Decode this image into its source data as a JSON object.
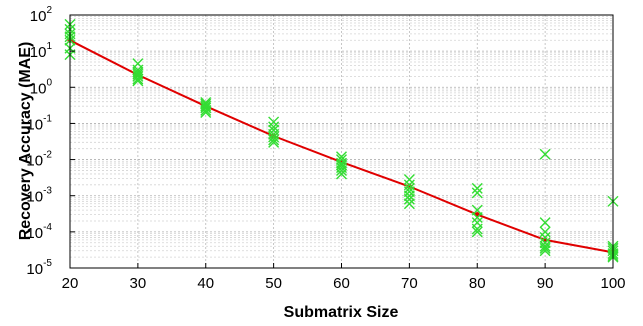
{
  "chart_data": {
    "type": "scatter",
    "xlabel": "Submatrix Size",
    "ylabel": "Recovery Accuracy (MAE)",
    "x_ticks": [
      "20",
      "30",
      "40",
      "50",
      "60",
      "70",
      "80",
      "90",
      "100"
    ],
    "y_ticks": [
      {
        "base": "10",
        "exp": "-5"
      },
      {
        "base": "10",
        "exp": "-4"
      },
      {
        "base": "10",
        "exp": "-3"
      },
      {
        "base": "10",
        "exp": "-2"
      },
      {
        "base": "10",
        "exp": "-1"
      },
      {
        "base": "10",
        "exp": "0"
      },
      {
        "base": "10",
        "exp": "1"
      },
      {
        "base": "10",
        "exp": "2"
      }
    ],
    "xlim": [
      20,
      100
    ],
    "ylim": [
      1e-05,
      100
    ],
    "y_scale": "log",
    "grid": true,
    "colors": {
      "line": "#e00000",
      "markers": "#33dd33"
    },
    "series": [
      {
        "marker": "x",
        "points": [
          [
            20,
            8
          ],
          [
            20,
            12
          ],
          [
            20,
            20
          ],
          [
            20,
            25
          ],
          [
            20,
            30
          ],
          [
            20,
            40
          ],
          [
            20,
            55
          ],
          [
            30,
            1.5
          ],
          [
            30,
            1.7
          ],
          [
            30,
            2
          ],
          [
            30,
            2.3
          ],
          [
            30,
            2.6
          ],
          [
            30,
            3
          ],
          [
            30,
            4.5
          ],
          [
            40,
            0.2
          ],
          [
            40,
            0.23
          ],
          [
            40,
            0.27
          ],
          [
            40,
            0.3
          ],
          [
            40,
            0.34
          ],
          [
            40,
            0.38
          ],
          [
            50,
            0.03
          ],
          [
            50,
            0.035
          ],
          [
            50,
            0.042
          ],
          [
            50,
            0.05
          ],
          [
            50,
            0.065
          ],
          [
            50,
            0.08
          ],
          [
            50,
            0.11
          ],
          [
            60,
            0.004
          ],
          [
            60,
            0.005
          ],
          [
            60,
            0.006
          ],
          [
            60,
            0.007
          ],
          [
            60,
            0.008
          ],
          [
            60,
            0.01
          ],
          [
            60,
            0.012
          ],
          [
            70,
            0.0006
          ],
          [
            70,
            0.0008
          ],
          [
            70,
            0.001
          ],
          [
            70,
            0.0013
          ],
          [
            70,
            0.0016
          ],
          [
            70,
            0.002
          ],
          [
            70,
            0.0028
          ],
          [
            80,
            0.0001
          ],
          [
            80,
            0.00012
          ],
          [
            80,
            0.00018
          ],
          [
            80,
            0.00025
          ],
          [
            80,
            0.0004
          ],
          [
            80,
            0.0012
          ],
          [
            80,
            0.0016
          ],
          [
            90,
            3e-05
          ],
          [
            90,
            3.5e-05
          ],
          [
            90,
            4e-05
          ],
          [
            90,
            5e-05
          ],
          [
            90,
            7e-05
          ],
          [
            90,
            0.0001
          ],
          [
            90,
            0.00018
          ],
          [
            90,
            0.014
          ],
          [
            100,
            2e-05
          ],
          [
            100,
            2.2e-05
          ],
          [
            100,
            2.5e-05
          ],
          [
            100,
            3e-05
          ],
          [
            100,
            3.5e-05
          ],
          [
            100,
            4e-05
          ],
          [
            100,
            0.0007
          ]
        ]
      },
      {
        "line": true,
        "x": [
          20,
          30,
          40,
          50,
          60,
          70,
          80,
          90,
          100
        ],
        "values": [
          20,
          2.2,
          0.3,
          0.045,
          0.0085,
          0.0018,
          0.0003,
          6e-05,
          2.7e-05
        ]
      }
    ]
  }
}
